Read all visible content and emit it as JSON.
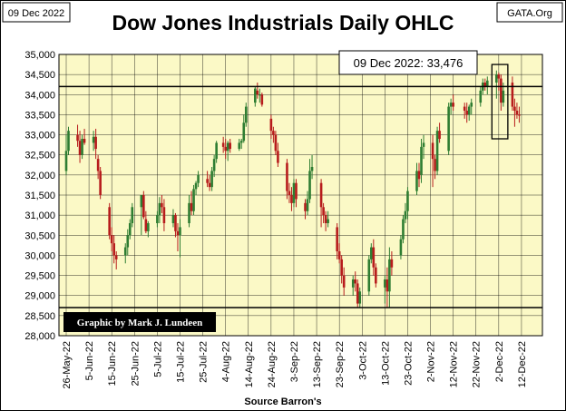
{
  "header": {
    "date_box": "09 Dec 2022",
    "source_box": "GATA.Org",
    "credit": "Graphic by Mark J. Lundeen"
  },
  "chart_data": {
    "type": "ohlc_candlestick",
    "title": "Dow Jones Industrials Daily OHLC",
    "xlabel": "Source Barron's",
    "ylabel": "",
    "ylim": [
      28000,
      35000
    ],
    "yticks": [
      28000,
      28500,
      29000,
      29500,
      30000,
      30500,
      31000,
      31500,
      32000,
      32500,
      33000,
      33500,
      34000,
      34500,
      35000
    ],
    "ytick_labels": [
      "28,000",
      "28,500",
      "29,000",
      "29,500",
      "30,000",
      "30,500",
      "31,000",
      "31,500",
      "32,000",
      "32,500",
      "33,000",
      "33,500",
      "34,000",
      "34,500",
      "35,000"
    ],
    "xticks": [
      "26-May-22",
      "5-Jun-22",
      "15-Jun-22",
      "25-Jun-22",
      "5-Jul-22",
      "15-Jul-22",
      "25-Jul-22",
      "4-Aug-22",
      "14-Aug-22",
      "24-Aug-22",
      "3-Sep-22",
      "13-Sep-22",
      "23-Sep-22",
      "3-Oct-22",
      "13-Oct-22",
      "23-Oct-22",
      "2-Nov-22",
      "12-Nov-22",
      "22-Nov-22",
      "2-Dec-22",
      "12-Dec-22"
    ],
    "annotation": "09 Dec 2022: 33,476",
    "reference_lines": [
      34200,
      28700
    ],
    "highlight_box": {
      "x_start_day": 187,
      "x_end_day": 194,
      "y_low": 32900,
      "y_high": 34750
    },
    "ohlc": [
      [
        0,
        32100,
        33000,
        32000,
        32600
      ],
      [
        1,
        32600,
        33200,
        32500,
        33100
      ],
      [
        5,
        33000,
        33250,
        32700,
        32850
      ],
      [
        6,
        32850,
        33100,
        32300,
        32500
      ],
      [
        7,
        32500,
        33000,
        32400,
        32900
      ],
      [
        8,
        32900,
        33150,
        32750,
        32800
      ],
      [
        12,
        32800,
        33100,
        32600,
        32950
      ],
      [
        13,
        32950,
        33150,
        32400,
        32650
      ],
      [
        14,
        32400,
        32500,
        31900,
        32100
      ],
      [
        15,
        32100,
        32200,
        31400,
        31500
      ],
      [
        19,
        31200,
        31300,
        30400,
        30500
      ],
      [
        20,
        30500,
        30700,
        30100,
        30300
      ],
      [
        21,
        30300,
        30500,
        29800,
        30000
      ],
      [
        22,
        30000,
        30100,
        29650,
        29900
      ],
      [
        26,
        30000,
        30300,
        29800,
        30200
      ],
      [
        27,
        30200,
        30650,
        30000,
        30500
      ],
      [
        28,
        30500,
        30900,
        30400,
        30800
      ],
      [
        29,
        30800,
        31300,
        30700,
        31200
      ],
      [
        33,
        31200,
        31500,
        30500,
        31500
      ],
      [
        34,
        31500,
        31600,
        30900,
        30950
      ],
      [
        35,
        30900,
        31100,
        30550,
        30600
      ],
      [
        36,
        30600,
        30850,
        30450,
        30800
      ],
      [
        40,
        30800,
        31100,
        30700,
        31000
      ],
      [
        41,
        31000,
        31450,
        30800,
        31300
      ],
      [
        42,
        31300,
        31500,
        31050,
        31200
      ],
      [
        43,
        31200,
        31400,
        30600,
        30800
      ],
      [
        47,
        30800,
        31150,
        30700,
        31000
      ],
      [
        48,
        31000,
        31050,
        30450,
        30600
      ],
      [
        49,
        30600,
        30800,
        30100,
        30500
      ],
      [
        50,
        30500,
        30900,
        29950,
        30700
      ],
      [
        54,
        30800,
        31500,
        30700,
        31300
      ],
      [
        55,
        31300,
        31600,
        31000,
        31100
      ],
      [
        56,
        31100,
        31750,
        31000,
        31650
      ],
      [
        57,
        31650,
        31850,
        31500,
        31800
      ],
      [
        58,
        31800,
        32100,
        31700,
        32000
      ],
      [
        62,
        31900,
        32100,
        31700,
        31800
      ],
      [
        63,
        31800,
        32000,
        31600,
        31700
      ],
      [
        64,
        31700,
        32200,
        31600,
        32100
      ],
      [
        65,
        32100,
        32500,
        31950,
        32400
      ],
      [
        66,
        32400,
        32850,
        32300,
        32800
      ],
      [
        69,
        32800,
        32950,
        32550,
        32700
      ],
      [
        70,
        32700,
        32900,
        32400,
        32600
      ],
      [
        71,
        32600,
        32850,
        32350,
        32800
      ],
      [
        72,
        32800,
        32900,
        32550,
        32650
      ],
      [
        76,
        32650,
        32900,
        32600,
        32800
      ],
      [
        77,
        32800,
        32900,
        32650,
        32850
      ],
      [
        78,
        32850,
        33500,
        32800,
        33300
      ],
      [
        79,
        33300,
        33800,
        33200,
        33700
      ],
      [
        83,
        33800,
        34200,
        33700,
        34150
      ],
      [
        84,
        34100,
        34300,
        33900,
        34000
      ],
      [
        85,
        34000,
        34150,
        33800,
        34000
      ],
      [
        86,
        34000,
        34050,
        33700,
        33750
      ],
      [
        90,
        33400,
        33500,
        32900,
        33100
      ],
      [
        91,
        33100,
        33200,
        32800,
        33000
      ],
      [
        92,
        33000,
        33100,
        32500,
        32600
      ],
      [
        93,
        32600,
        32800,
        32200,
        32300
      ],
      [
        97,
        32300,
        32400,
        31400,
        31600
      ],
      [
        98,
        31600,
        31800,
        31300,
        31500
      ],
      [
        99,
        31500,
        31700,
        31100,
        31300
      ],
      [
        100,
        31300,
        31900,
        31200,
        31800
      ],
      [
        101,
        31800,
        31900,
        31200,
        31400
      ],
      [
        105,
        31300,
        31400,
        30900,
        31100
      ],
      [
        106,
        31100,
        31600,
        31000,
        31400
      ],
      [
        107,
        31400,
        32400,
        31300,
        32100
      ],
      [
        108,
        32100,
        32500,
        31900,
        32200
      ],
      [
        112,
        31800,
        31900,
        30700,
        31200
      ],
      [
        113,
        31200,
        31300,
        30800,
        31000
      ],
      [
        114,
        31000,
        31100,
        30600,
        30800
      ],
      [
        115,
        30800,
        31100,
        30700,
        30900
      ],
      [
        119,
        30700,
        30800,
        29900,
        30100
      ],
      [
        120,
        30100,
        30300,
        29800,
        29900
      ],
      [
        121,
        29900,
        30000,
        29300,
        29500
      ],
      [
        122,
        29500,
        29700,
        29000,
        29200
      ],
      [
        126,
        29200,
        29500,
        29000,
        29400
      ],
      [
        127,
        29400,
        29600,
        29100,
        29300
      ],
      [
        128,
        29300,
        29400,
        28700,
        28800
      ],
      [
        129,
        28800,
        29200,
        28700,
        29100
      ],
      [
        133,
        29100,
        30000,
        29000,
        29900
      ],
      [
        134,
        29900,
        30300,
        29800,
        30200
      ],
      [
        135,
        30200,
        30400,
        29500,
        29700
      ],
      [
        136,
        29700,
        29800,
        29200,
        29300
      ],
      [
        140,
        29200,
        29500,
        28800,
        29400
      ],
      [
        141,
        29400,
        29700,
        28700,
        29100
      ],
      [
        142,
        29100,
        30200,
        28700,
        29900
      ],
      [
        143,
        29900,
        30100,
        29500,
        29700
      ],
      [
        147,
        30000,
        30500,
        29900,
        30400
      ],
      [
        148,
        30400,
        31000,
        30300,
        30900
      ],
      [
        149,
        30900,
        31300,
        30800,
        31100
      ],
      [
        150,
        31100,
        31700,
        30900,
        31600
      ],
      [
        154,
        31600,
        32300,
        31500,
        32100
      ],
      [
        155,
        32100,
        32300,
        31700,
        31900
      ],
      [
        156,
        32000,
        32900,
        31800,
        32700
      ],
      [
        157,
        32700,
        33000,
        32400,
        32800
      ],
      [
        161,
        32800,
        33000,
        31700,
        32400
      ],
      [
        162,
        32400,
        32500,
        31900,
        32100
      ],
      [
        163,
        32100,
        33200,
        32000,
        33100
      ],
      [
        164,
        33100,
        33300,
        32800,
        32900
      ],
      [
        168,
        32600,
        33800,
        32500,
        33700
      ],
      [
        169,
        33700,
        33900,
        33500,
        33800
      ],
      [
        170,
        33800,
        34000,
        33600,
        33700
      ],
      [
        175,
        33700,
        33800,
        33400,
        33600
      ],
      [
        176,
        33600,
        33800,
        33300,
        33500
      ],
      [
        177,
        33500,
        33750,
        33350,
        33700
      ],
      [
        178,
        33700,
        33900,
        33500,
        33800
      ],
      [
        182,
        33800,
        34200,
        33700,
        34100
      ],
      [
        183,
        34100,
        34400,
        34000,
        34300
      ],
      [
        184,
        34300,
        34400,
        34100,
        34200
      ],
      [
        185,
        34200,
        34450,
        34000,
        34350
      ],
      [
        189,
        34300,
        34600,
        33900,
        34500
      ],
      [
        190,
        34500,
        34550,
        34100,
        34400
      ],
      [
        191,
        34400,
        34500,
        33600,
        33800
      ],
      [
        192,
        33800,
        34300,
        33700,
        34100
      ],
      [
        196,
        34300,
        34450,
        33600,
        33700
      ],
      [
        197,
        33700,
        33900,
        33200,
        33600
      ],
      [
        198,
        33600,
        33800,
        33400,
        33500
      ],
      [
        199,
        33500,
        33700,
        33300,
        33476
      ]
    ]
  }
}
